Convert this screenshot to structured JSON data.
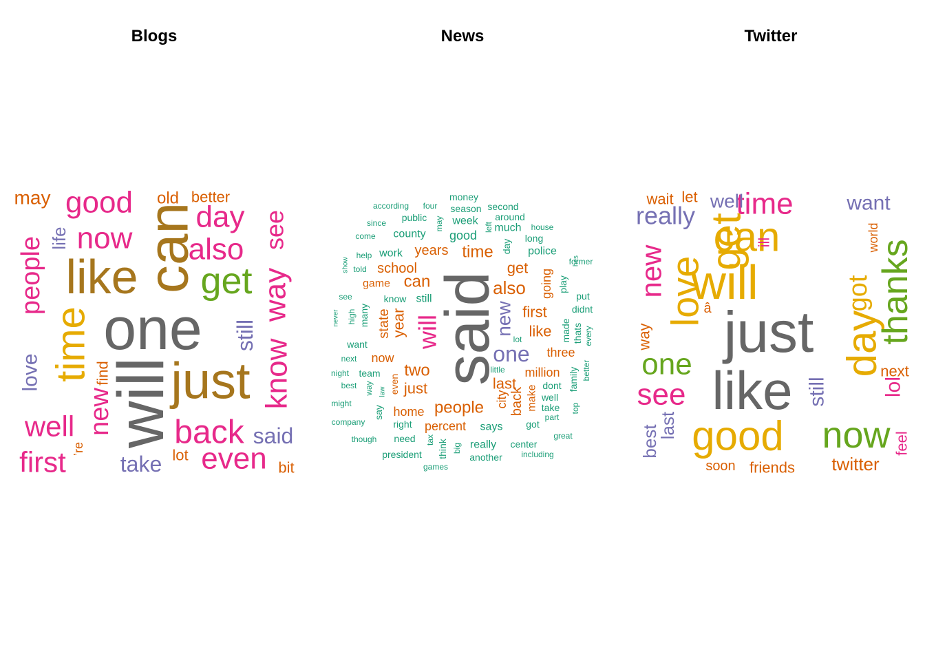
{
  "palette": {
    "gray": "#666666",
    "brown": "#A6761D",
    "gold": "#E6AB02",
    "green": "#66A61E",
    "pink": "#E7298A",
    "purple": "#7570B3",
    "orange": "#D95F02",
    "teal": "#1B9E77"
  },
  "chart_data": [
    {
      "type": "wordcloud",
      "title": "Blogs",
      "words": [
        {
          "text": "will",
          "color": "gray"
        },
        {
          "text": "one",
          "color": "gray"
        },
        {
          "text": "can",
          "color": "brown"
        },
        {
          "text": "like",
          "color": "brown"
        },
        {
          "text": "just",
          "color": "brown"
        },
        {
          "text": "time",
          "color": "gold"
        },
        {
          "text": "get",
          "color": "green"
        },
        {
          "text": "good",
          "color": "pink"
        },
        {
          "text": "now",
          "color": "pink"
        },
        {
          "text": "day",
          "color": "pink"
        },
        {
          "text": "also",
          "color": "pink"
        },
        {
          "text": "people",
          "color": "pink"
        },
        {
          "text": "know",
          "color": "pink"
        },
        {
          "text": "way",
          "color": "pink"
        },
        {
          "text": "see",
          "color": "pink"
        },
        {
          "text": "back",
          "color": "pink"
        },
        {
          "text": "even",
          "color": "pink"
        },
        {
          "text": "well",
          "color": "pink"
        },
        {
          "text": "first",
          "color": "pink"
        },
        {
          "text": "new",
          "color": "pink"
        },
        {
          "text": "love",
          "color": "purple"
        },
        {
          "text": "life",
          "color": "purple"
        },
        {
          "text": "still",
          "color": "purple"
        },
        {
          "text": "said",
          "color": "purple"
        },
        {
          "text": "take",
          "color": "purple"
        },
        {
          "text": "may",
          "color": "orange"
        },
        {
          "text": "old",
          "color": "orange"
        },
        {
          "text": "better",
          "color": "orange"
        },
        {
          "text": "find",
          "color": "orange"
        },
        {
          "text": "lot",
          "color": "orange"
        },
        {
          "text": "bit",
          "color": "orange"
        },
        {
          "text": "’re",
          "color": "orange"
        }
      ]
    },
    {
      "type": "wordcloud",
      "title": "News",
      "words": [
        {
          "text": "said",
          "color": "gray"
        },
        {
          "text": "will",
          "color": "pink"
        },
        {
          "text": "one",
          "color": "purple"
        },
        {
          "text": "new",
          "color": "purple"
        },
        {
          "text": "also",
          "color": "orange"
        },
        {
          "text": "people",
          "color": "orange"
        },
        {
          "text": "two",
          "color": "orange"
        },
        {
          "text": "just",
          "color": "orange"
        },
        {
          "text": "last",
          "color": "orange"
        },
        {
          "text": "year",
          "color": "orange"
        },
        {
          "text": "can",
          "color": "orange"
        },
        {
          "text": "time",
          "color": "orange"
        },
        {
          "text": "years",
          "color": "orange"
        },
        {
          "text": "school",
          "color": "orange"
        },
        {
          "text": "get",
          "color": "orange"
        },
        {
          "text": "first",
          "color": "orange"
        },
        {
          "text": "like",
          "color": "orange"
        },
        {
          "text": "percent",
          "color": "orange"
        },
        {
          "text": "million",
          "color": "orange"
        },
        {
          "text": "three",
          "color": "orange"
        },
        {
          "text": "back",
          "color": "orange"
        },
        {
          "text": "state",
          "color": "orange"
        },
        {
          "text": "now",
          "color": "orange"
        },
        {
          "text": "home",
          "color": "orange"
        },
        {
          "text": "make",
          "color": "orange"
        },
        {
          "text": "going",
          "color": "orange"
        },
        {
          "text": "city",
          "color": "orange"
        },
        {
          "text": "game",
          "color": "orange"
        },
        {
          "text": "even",
          "color": "orange"
        },
        {
          "text": "says",
          "color": "teal"
        },
        {
          "text": "good",
          "color": "teal"
        },
        {
          "text": "week",
          "color": "teal"
        },
        {
          "text": "county",
          "color": "teal"
        },
        {
          "text": "work",
          "color": "teal"
        },
        {
          "text": "police",
          "color": "teal"
        },
        {
          "text": "much",
          "color": "teal"
        },
        {
          "text": "still",
          "color": "teal"
        },
        {
          "text": "know",
          "color": "teal"
        },
        {
          "text": "team",
          "color": "teal"
        },
        {
          "text": "want",
          "color": "teal"
        },
        {
          "text": "many",
          "color": "teal"
        },
        {
          "text": "high",
          "color": "teal"
        },
        {
          "text": "right",
          "color": "teal"
        },
        {
          "text": "need",
          "color": "teal"
        },
        {
          "text": "president",
          "color": "teal"
        },
        {
          "text": "really",
          "color": "teal"
        },
        {
          "text": "another",
          "color": "teal"
        },
        {
          "text": "center",
          "color": "teal"
        },
        {
          "text": "including",
          "color": "teal"
        },
        {
          "text": "dont",
          "color": "teal"
        },
        {
          "text": "well",
          "color": "teal"
        },
        {
          "text": "take",
          "color": "teal"
        },
        {
          "text": "part",
          "color": "teal"
        },
        {
          "text": "got",
          "color": "teal"
        },
        {
          "text": "family",
          "color": "teal"
        },
        {
          "text": "made",
          "color": "teal"
        },
        {
          "text": "thats",
          "color": "teal"
        },
        {
          "text": "play",
          "color": "teal"
        },
        {
          "text": "put",
          "color": "teal"
        },
        {
          "text": "didnt",
          "color": "teal"
        },
        {
          "text": "money",
          "color": "teal"
        },
        {
          "text": "season",
          "color": "teal"
        },
        {
          "text": "second",
          "color": "teal"
        },
        {
          "text": "around",
          "color": "teal"
        },
        {
          "text": "public",
          "color": "teal"
        },
        {
          "text": "four",
          "color": "teal"
        },
        {
          "text": "according",
          "color": "teal"
        },
        {
          "text": "since",
          "color": "teal"
        },
        {
          "text": "come",
          "color": "teal"
        },
        {
          "text": "may",
          "color": "teal"
        },
        {
          "text": "left",
          "color": "teal"
        },
        {
          "text": "long",
          "color": "teal"
        },
        {
          "text": "day",
          "color": "teal"
        },
        {
          "text": "house",
          "color": "teal"
        },
        {
          "text": "former",
          "color": "teal"
        },
        {
          "text": "hes",
          "color": "teal"
        },
        {
          "text": "help",
          "color": "teal"
        },
        {
          "text": "told",
          "color": "teal"
        },
        {
          "text": "show",
          "color": "teal"
        },
        {
          "text": "see",
          "color": "teal"
        },
        {
          "text": "never",
          "color": "teal"
        },
        {
          "text": "next",
          "color": "teal"
        },
        {
          "text": "night",
          "color": "teal"
        },
        {
          "text": "best",
          "color": "teal"
        },
        {
          "text": "might",
          "color": "teal"
        },
        {
          "text": "company",
          "color": "teal"
        },
        {
          "text": "though",
          "color": "teal"
        },
        {
          "text": "way",
          "color": "teal"
        },
        {
          "text": "say",
          "color": "teal"
        },
        {
          "text": "law",
          "color": "teal"
        },
        {
          "text": "tax",
          "color": "teal"
        },
        {
          "text": "think",
          "color": "teal"
        },
        {
          "text": "big",
          "color": "teal"
        },
        {
          "text": "games",
          "color": "teal"
        },
        {
          "text": "little",
          "color": "teal"
        },
        {
          "text": "lot",
          "color": "teal"
        },
        {
          "text": "top",
          "color": "teal"
        },
        {
          "text": "every",
          "color": "teal"
        },
        {
          "text": "better",
          "color": "teal"
        },
        {
          "text": "great",
          "color": "teal"
        }
      ]
    },
    {
      "type": "wordcloud",
      "title": "Twitter",
      "words": [
        {
          "text": "just",
          "color": "gray"
        },
        {
          "text": "like",
          "color": "gray"
        },
        {
          "text": "will",
          "color": "gold"
        },
        {
          "text": "can",
          "color": "gold"
        },
        {
          "text": "get",
          "color": "gold"
        },
        {
          "text": "love",
          "color": "gold"
        },
        {
          "text": "good",
          "color": "gold"
        },
        {
          "text": "day",
          "color": "gold"
        },
        {
          "text": "got",
          "color": "gold"
        },
        {
          "text": "thanks",
          "color": "green"
        },
        {
          "text": "now",
          "color": "green"
        },
        {
          "text": "one",
          "color": "green"
        },
        {
          "text": "time",
          "color": "pink"
        },
        {
          "text": "see",
          "color": "pink"
        },
        {
          "text": "new",
          "color": "pink"
        },
        {
          "text": "lol",
          "color": "pink"
        },
        {
          "text": "ill",
          "color": "pink"
        },
        {
          "text": "feel",
          "color": "pink"
        },
        {
          "text": "really",
          "color": "purple"
        },
        {
          "text": "well",
          "color": "purple"
        },
        {
          "text": "want",
          "color": "purple"
        },
        {
          "text": "last",
          "color": "purple"
        },
        {
          "text": "best",
          "color": "purple"
        },
        {
          "text": "still",
          "color": "purple"
        },
        {
          "text": "wait",
          "color": "orange"
        },
        {
          "text": "let",
          "color": "orange"
        },
        {
          "text": "way",
          "color": "orange"
        },
        {
          "text": "world",
          "color": "orange"
        },
        {
          "text": "next",
          "color": "orange"
        },
        {
          "text": "soon",
          "color": "orange"
        },
        {
          "text": "friends",
          "color": "orange"
        },
        {
          "text": "twitter",
          "color": "orange"
        },
        {
          "text": "â",
          "color": "orange"
        }
      ]
    }
  ]
}
